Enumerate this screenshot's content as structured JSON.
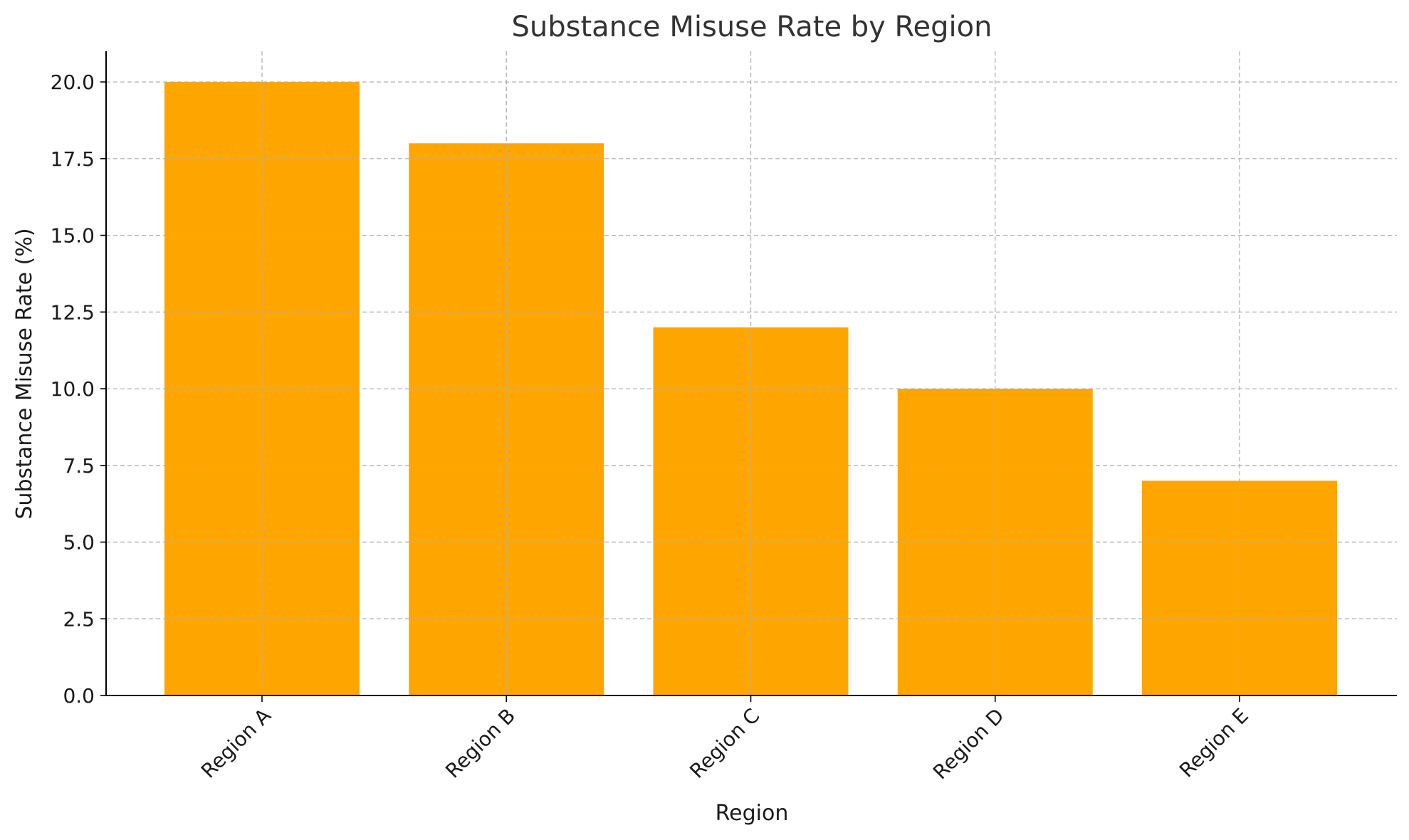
{
  "chart_data": {
    "type": "bar",
    "title": "Substance Misuse Rate by Region",
    "xlabel": "Region",
    "ylabel": "Substance Misuse Rate (%)",
    "categories": [
      "Region A",
      "Region B",
      "Region C",
      "Region D",
      "Region E"
    ],
    "values": [
      20,
      18,
      12,
      10,
      7
    ],
    "ylim": [
      0,
      21
    ],
    "yticks": [
      "0.0",
      "2.5",
      "5.0",
      "7.5",
      "10.0",
      "12.5",
      "15.0",
      "17.5",
      "20.0"
    ],
    "grid": true,
    "bar_color": "#FFA500"
  }
}
